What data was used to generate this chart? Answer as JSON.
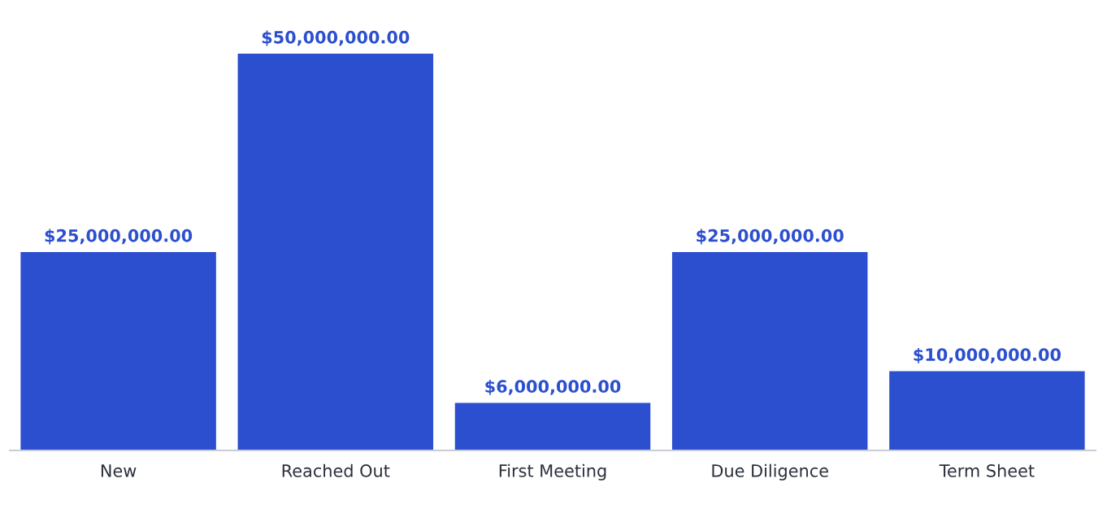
{
  "chart_data": {
    "type": "bar",
    "categories": [
      "New",
      "Reached Out",
      "First Meeting",
      "Due Diligence",
      "Term Sheet"
    ],
    "values": [
      25000000,
      50000000,
      6000000,
      25000000,
      10000000
    ],
    "value_labels": [
      "$25,000,000.00",
      "$50,000,000.00",
      "$6,000,000.00",
      "$25,000,000.00",
      "$10,000,000.00"
    ],
    "color": "#2b4fcf",
    "grid": false,
    "legend": false
  }
}
